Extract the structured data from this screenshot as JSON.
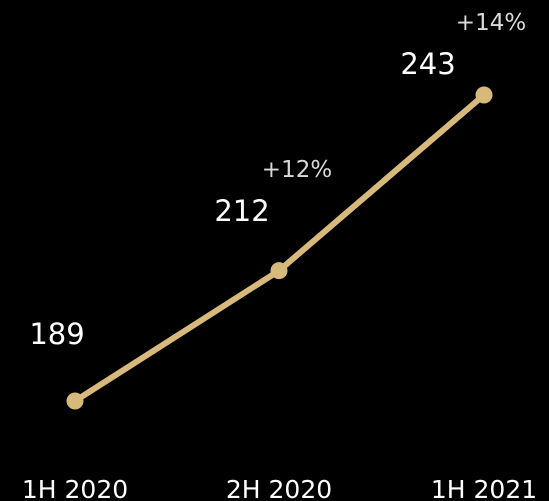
{
  "chart_data": {
    "type": "line",
    "categories": [
      "1H 2020",
      "2H 2020",
      "1H 2021"
    ],
    "values": [
      189,
      212,
      243
    ],
    "value_labels": [
      "189",
      "212",
      "243"
    ],
    "growth_labels": [
      "",
      "+12%",
      "+14%"
    ],
    "line_color": "#d8b97c",
    "background_color": "#000000",
    "text_color": "#ffffff",
    "growth_text_color": "#d9d9d9",
    "grid": false,
    "legend": "none"
  }
}
